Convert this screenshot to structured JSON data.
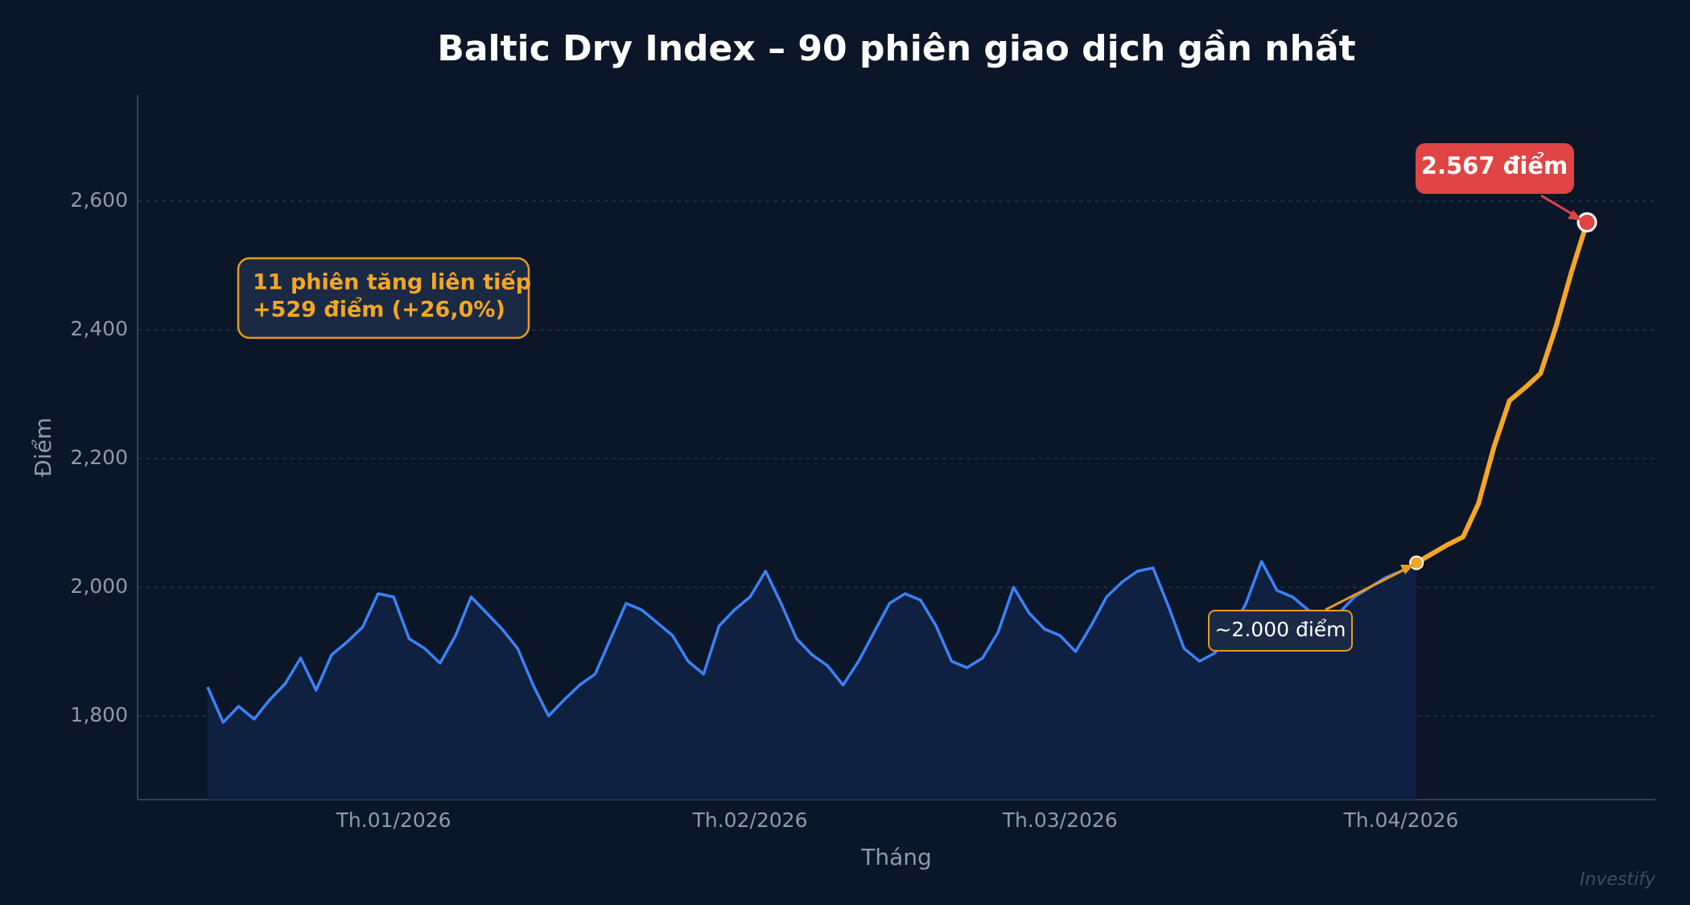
{
  "chart_data": {
    "type": "line",
    "title": "Baltic Dry Index – 90 phiên giao dịch gần nhất",
    "xlabel": "Tháng",
    "ylabel": "Điểm",
    "categories": [
      null,
      null,
      null,
      null,
      null,
      null,
      null,
      null,
      null,
      null,
      null,
      null,
      "Th.01/2026",
      null,
      null,
      null,
      null,
      null,
      null,
      null,
      null,
      null,
      null,
      null,
      null,
      null,
      null,
      null,
      null,
      null,
      null,
      null,
      null,
      null,
      null,
      "Th.02/2026",
      null,
      null,
      null,
      null,
      null,
      null,
      null,
      null,
      null,
      null,
      null,
      null,
      null,
      null,
      null,
      null,
      null,
      null,
      null,
      "Th.03/2026",
      null,
      null,
      null,
      null,
      null,
      null,
      null,
      null,
      null,
      null,
      null,
      null,
      null,
      null,
      null,
      null,
      null,
      null,
      null,
      null,
      null,
      "Th.04/2026",
      null,
      null,
      null,
      null,
      null,
      null,
      null,
      null,
      null,
      null,
      null,
      null
    ],
    "series": [
      {
        "color": "#3b82f6",
        "values": [
          1845,
          1790,
          1815,
          1795,
          1825,
          1850,
          1890,
          1840,
          1895,
          1915,
          1938,
          1990,
          1985,
          1920,
          1905,
          1882,
          1925,
          1985,
          1960,
          1935,
          1905,
          1848,
          1800,
          1825,
          1848,
          1865,
          1920,
          1975,
          1965,
          1945,
          1925,
          1885,
          1865,
          1940,
          1965,
          1985,
          2025,
          1975,
          1920,
          1895,
          1878,
          1848,
          1885,
          1930,
          1975,
          1990,
          1980,
          1940,
          1885,
          1875,
          1890,
          1930,
          2000,
          1960,
          1935,
          1925,
          1900,
          1940,
          1985,
          2008,
          2025,
          2030,
          1970,
          1905,
          1885,
          1898,
          1930,
          1975,
          2040,
          1995,
          1985,
          1965,
          1940,
          1960,
          1985,
          2000,
          2015,
          2025,
          2038,
          null,
          null,
          null,
          null,
          null,
          null,
          null,
          null,
          null,
          null,
          null
        ]
      },
      {
        "color": "#f5a623",
        "values": [
          null,
          null,
          null,
          null,
          null,
          null,
          null,
          null,
          null,
          null,
          null,
          null,
          null,
          null,
          null,
          null,
          null,
          null,
          null,
          null,
          null,
          null,
          null,
          null,
          null,
          null,
          null,
          null,
          null,
          null,
          null,
          null,
          null,
          null,
          null,
          null,
          null,
          null,
          null,
          null,
          null,
          null,
          null,
          null,
          null,
          null,
          null,
          null,
          null,
          null,
          null,
          null,
          null,
          null,
          null,
          null,
          null,
          null,
          null,
          null,
          null,
          null,
          null,
          null,
          null,
          null,
          null,
          null,
          null,
          null,
          null,
          null,
          null,
          null,
          null,
          null,
          null,
          null,
          2038,
          2052,
          2066,
          2078,
          2130,
          2218,
          2290,
          2310,
          2332,
          2405,
          2490,
          2567
        ]
      }
    ],
    "ylim": [
      1670,
      2765
    ],
    "yticks": [
      {
        "value": 1800,
        "label": "1,800"
      },
      {
        "value": 2000,
        "label": "2,000"
      },
      {
        "value": 2200,
        "label": "2,200"
      },
      {
        "value": 2400,
        "label": "2,400"
      },
      {
        "value": 2600,
        "label": "2,600"
      }
    ],
    "grid": true,
    "annotations": {
      "streak": [
        "11 phiên tăng liên tiếp",
        "+529 điểm  (+26,0%)"
      ],
      "base": "~2.000 điểm",
      "peak": "2.567 điểm"
    },
    "watermark": "Investify"
  }
}
